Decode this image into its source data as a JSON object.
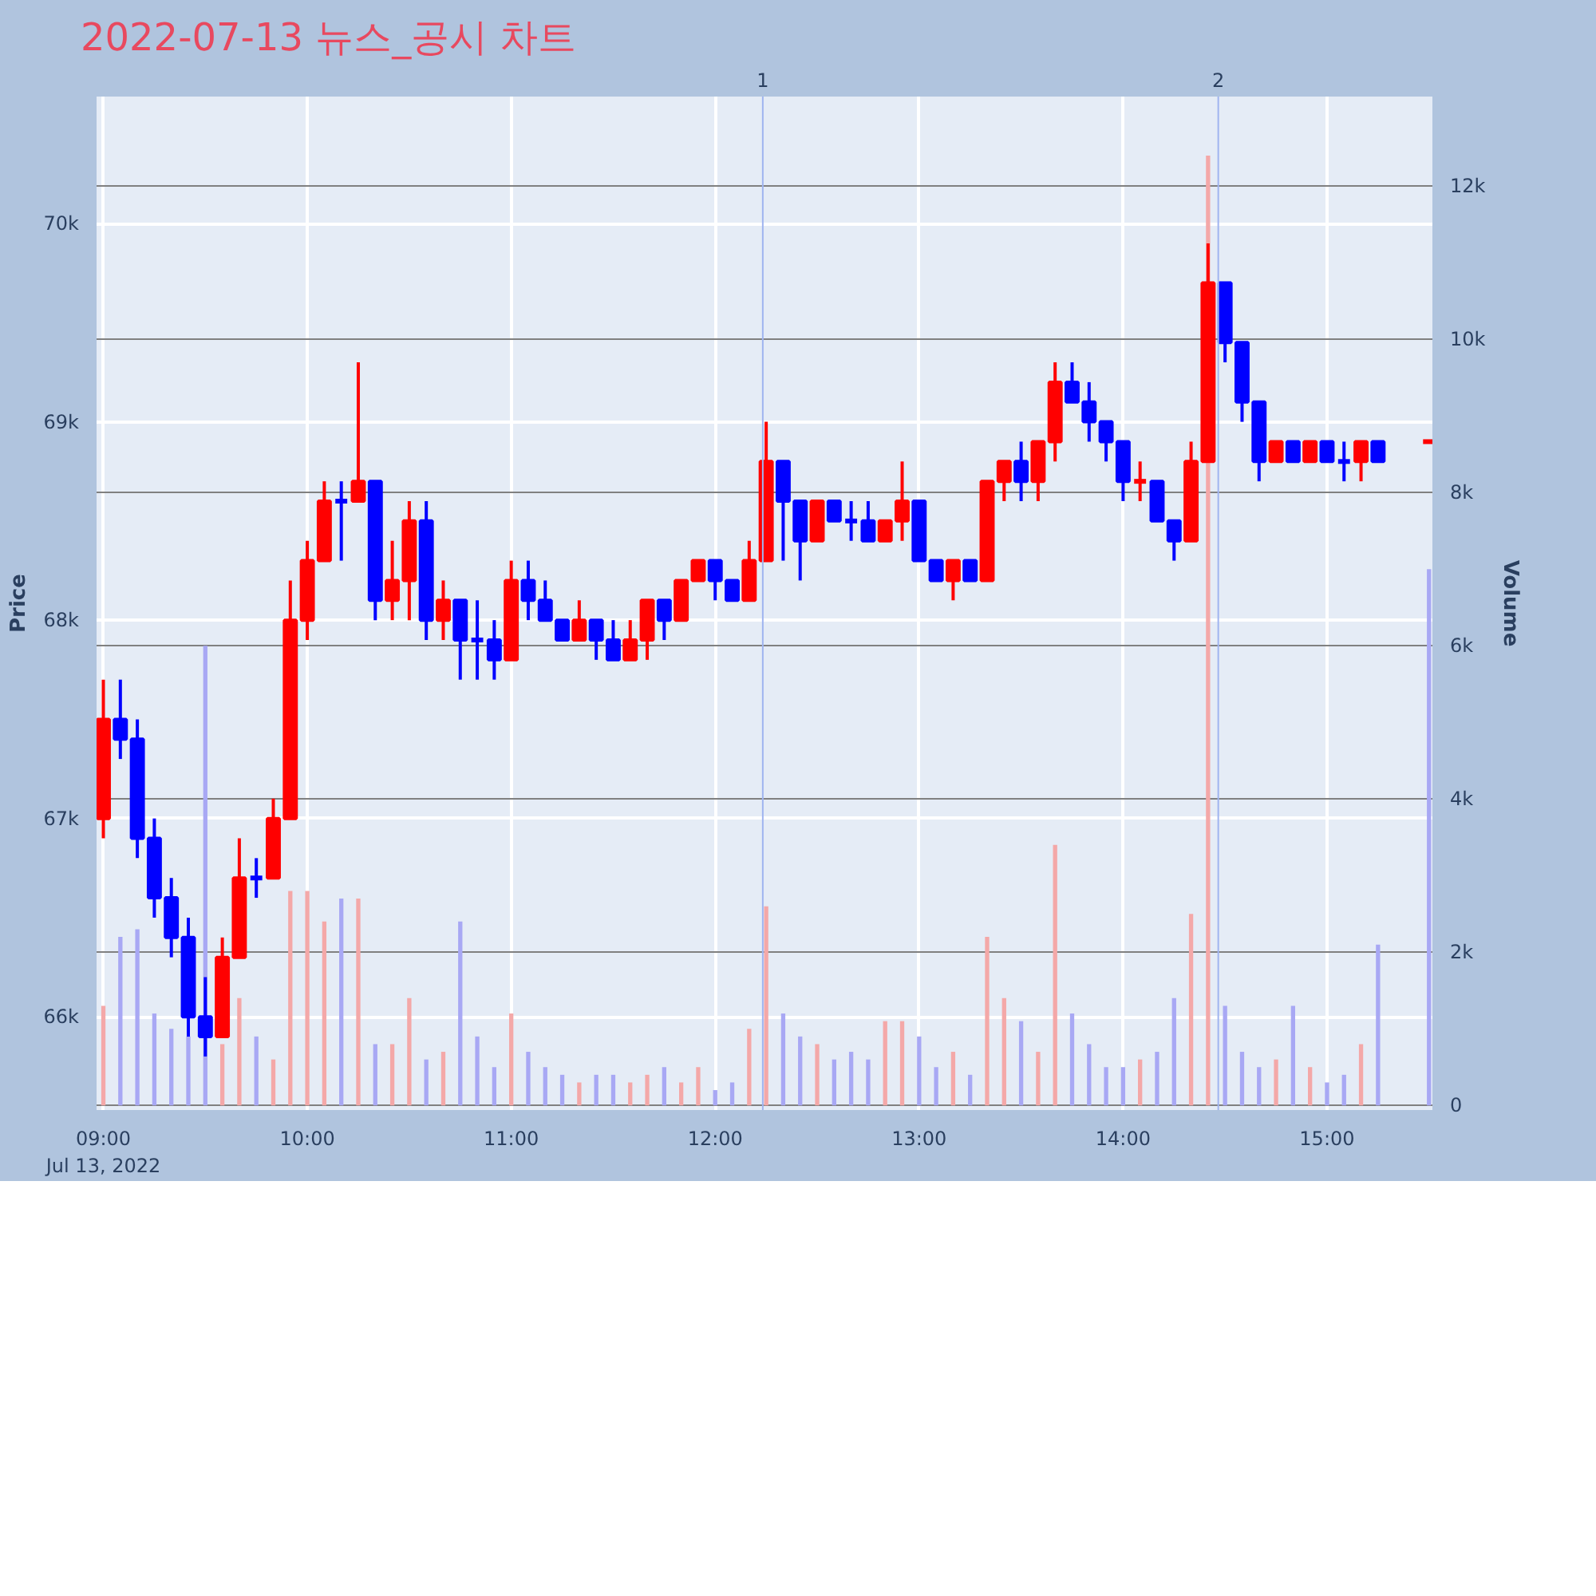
{
  "chart_data": {
    "type": "candlestick",
    "title": "2022-07-13 뉴스_공시 차트",
    "ylabel": "Price",
    "y2label": "Volume",
    "x": [
      "2022-07-13T09:00",
      "2022-07-13T09:05",
      "2022-07-13T09:10",
      "2022-07-13T09:15",
      "2022-07-13T09:20",
      "2022-07-13T09:25",
      "2022-07-13T09:30",
      "2022-07-13T09:35",
      "2022-07-13T09:40",
      "2022-07-13T09:45",
      "2022-07-13T09:50",
      "2022-07-13T09:55",
      "2022-07-13T10:00",
      "2022-07-13T10:05",
      "2022-07-13T10:10",
      "2022-07-13T10:15",
      "2022-07-13T10:20",
      "2022-07-13T10:25",
      "2022-07-13T10:30",
      "2022-07-13T10:35",
      "2022-07-13T10:40",
      "2022-07-13T10:45",
      "2022-07-13T10:50",
      "2022-07-13T10:55",
      "2022-07-13T11:00",
      "2022-07-13T11:05",
      "2022-07-13T11:10",
      "2022-07-13T11:15",
      "2022-07-13T11:20",
      "2022-07-13T11:25",
      "2022-07-13T11:30",
      "2022-07-13T11:35",
      "2022-07-13T11:40",
      "2022-07-13T11:45",
      "2022-07-13T11:50",
      "2022-07-13T11:55",
      "2022-07-13T12:00",
      "2022-07-13T12:05",
      "2022-07-13T12:10",
      "2022-07-13T12:15",
      "2022-07-13T12:20",
      "2022-07-13T12:25",
      "2022-07-13T12:30",
      "2022-07-13T12:35",
      "2022-07-13T12:40",
      "2022-07-13T12:45",
      "2022-07-13T12:50",
      "2022-07-13T12:55",
      "2022-07-13T13:00",
      "2022-07-13T13:05",
      "2022-07-13T13:10",
      "2022-07-13T13:15",
      "2022-07-13T13:20",
      "2022-07-13T13:25",
      "2022-07-13T13:30",
      "2022-07-13T13:35",
      "2022-07-13T13:40",
      "2022-07-13T13:45",
      "2022-07-13T13:50",
      "2022-07-13T13:55",
      "2022-07-13T14:00",
      "2022-07-13T14:05",
      "2022-07-13T14:10",
      "2022-07-13T14:15",
      "2022-07-13T14:20",
      "2022-07-13T14:25",
      "2022-07-13T14:30",
      "2022-07-13T14:35",
      "2022-07-13T14:40",
      "2022-07-13T14:45",
      "2022-07-13T14:50",
      "2022-07-13T14:55",
      "2022-07-13T15:00",
      "2022-07-13T15:05",
      "2022-07-13T15:10",
      "2022-07-13T15:15",
      "2022-07-13T15:30"
    ],
    "series": [
      {
        "ohlc": [
          [
            67000,
            67700,
            66900,
            67500
          ],
          [
            67500,
            67700,
            67300,
            67400
          ],
          [
            67400,
            67500,
            66800,
            66900
          ],
          [
            66900,
            67000,
            66500,
            66600
          ],
          [
            66600,
            66700,
            66300,
            66400
          ],
          [
            66400,
            66500,
            65900,
            66000
          ],
          [
            66000,
            66200,
            65800,
            65900
          ],
          [
            65900,
            66400,
            65900,
            66300
          ],
          [
            66300,
            66900,
            66300,
            66700
          ],
          [
            66700,
            66800,
            66600,
            66700
          ],
          [
            66700,
            67100,
            66700,
            67000
          ],
          [
            67000,
            68200,
            67000,
            68000
          ],
          [
            68000,
            68400,
            67900,
            68300
          ],
          [
            68300,
            68700,
            68300,
            68600
          ],
          [
            68600,
            68700,
            68300,
            68600
          ],
          [
            68600,
            69300,
            68600,
            68700
          ],
          [
            68700,
            68700,
            68000,
            68100
          ],
          [
            68100,
            68400,
            68000,
            68200
          ],
          [
            68200,
            68600,
            68000,
            68500
          ],
          [
            68500,
            68600,
            67900,
            68000
          ],
          [
            68000,
            68200,
            67900,
            68100
          ],
          [
            68100,
            68100,
            67700,
            67900
          ],
          [
            67900,
            68100,
            67700,
            67900
          ],
          [
            67900,
            68000,
            67700,
            67800
          ],
          [
            67800,
            68300,
            67800,
            68200
          ],
          [
            68200,
            68300,
            68000,
            68100
          ],
          [
            68100,
            68200,
            68000,
            68000
          ],
          [
            68000,
            68000,
            67900,
            67900
          ],
          [
            67900,
            68100,
            67900,
            68000
          ],
          [
            68000,
            68000,
            67800,
            67900
          ],
          [
            67900,
            68000,
            67800,
            67800
          ],
          [
            67800,
            68000,
            67800,
            67900
          ],
          [
            67900,
            68100,
            67800,
            68100
          ],
          [
            68100,
            68100,
            67900,
            68000
          ],
          [
            68000,
            68200,
            68000,
            68200
          ],
          [
            68200,
            68300,
            68200,
            68300
          ],
          [
            68300,
            68300,
            68100,
            68200
          ],
          [
            68200,
            68200,
            68100,
            68100
          ],
          [
            68100,
            68400,
            68100,
            68300
          ],
          [
            68300,
            69000,
            68300,
            68800
          ],
          [
            68800,
            68800,
            68300,
            68600
          ],
          [
            68600,
            68600,
            68200,
            68400
          ],
          [
            68400,
            68600,
            68400,
            68600
          ],
          [
            68600,
            68600,
            68500,
            68500
          ],
          [
            68500,
            68600,
            68400,
            68500
          ],
          [
            68500,
            68600,
            68400,
            68400
          ],
          [
            68400,
            68500,
            68400,
            68500
          ],
          [
            68500,
            68800,
            68400,
            68600
          ],
          [
            68600,
            68600,
            68300,
            68300
          ],
          [
            68300,
            68300,
            68200,
            68200
          ],
          [
            68200,
            68300,
            68100,
            68300
          ],
          [
            68300,
            68300,
            68200,
            68200
          ],
          [
            68200,
            68700,
            68200,
            68700
          ],
          [
            68700,
            68800,
            68600,
            68800
          ],
          [
            68800,
            68900,
            68600,
            68700
          ],
          [
            68700,
            68900,
            68600,
            68900
          ],
          [
            68900,
            69300,
            68800,
            69200
          ],
          [
            69200,
            69300,
            69100,
            69100
          ],
          [
            69100,
            69200,
            68900,
            69000
          ],
          [
            69000,
            69000,
            68800,
            68900
          ],
          [
            68900,
            68900,
            68600,
            68700
          ],
          [
            68700,
            68800,
            68600,
            68700
          ],
          [
            68700,
            68700,
            68500,
            68500
          ],
          [
            68500,
            68500,
            68300,
            68400
          ],
          [
            68400,
            68900,
            68400,
            68800
          ],
          [
            68800,
            69900,
            68800,
            69700
          ],
          [
            69700,
            69700,
            69300,
            69400
          ],
          [
            69400,
            69400,
            69000,
            69100
          ],
          [
            69100,
            69100,
            68700,
            68800
          ],
          [
            68800,
            68900,
            68800,
            68900
          ],
          [
            68900,
            68900,
            68800,
            68800
          ],
          [
            68800,
            68900,
            68800,
            68900
          ],
          [
            68900,
            68900,
            68800,
            68800
          ],
          [
            68800,
            68900,
            68700,
            68800
          ],
          [
            68800,
            68900,
            68700,
            68900
          ],
          [
            68900,
            68900,
            68800,
            68800
          ],
          [
            68900,
            68900,
            68900,
            68900
          ]
        ],
        "colors": [
          "#ff0000",
          "#0000ff",
          "#0000ff",
          "#0000ff",
          "#0000ff",
          "#0000ff",
          "#0000ff",
          "#ff0000",
          "#ff0000",
          "#0000ff",
          "#ff0000",
          "#ff0000",
          "#ff0000",
          "#ff0000",
          "#0000ff",
          "#ff0000",
          "#0000ff",
          "#ff0000",
          "#ff0000",
          "#0000ff",
          "#ff0000",
          "#0000ff",
          "#0000ff",
          "#0000ff",
          "#ff0000",
          "#0000ff",
          "#0000ff",
          "#0000ff",
          "#ff0000",
          "#0000ff",
          "#0000ff",
          "#ff0000",
          "#ff0000",
          "#0000ff",
          "#ff0000",
          "#ff0000",
          "#0000ff",
          "#0000ff",
          "#ff0000",
          "#ff0000",
          "#0000ff",
          "#0000ff",
          "#ff0000",
          "#0000ff",
          "#0000ff",
          "#0000ff",
          "#ff0000",
          "#ff0000",
          "#0000ff",
          "#0000ff",
          "#ff0000",
          "#0000ff",
          "#ff0000",
          "#ff0000",
          "#0000ff",
          "#ff0000",
          "#ff0000",
          "#0000ff",
          "#0000ff",
          "#0000ff",
          "#0000ff",
          "#ff0000",
          "#0000ff",
          "#0000ff",
          "#ff0000",
          "#ff0000",
          "#0000ff",
          "#0000ff",
          "#0000ff",
          "#ff0000",
          "#0000ff",
          "#ff0000",
          "#0000ff",
          "#0000ff",
          "#ff0000",
          "#0000ff",
          "#ff0000"
        ]
      },
      {
        "type": "bar",
        "axis": "y2",
        "values": [
          1300,
          2200,
          2300,
          1200,
          1000,
          900,
          6000,
          800,
          1400,
          900,
          600,
          2800,
          2800,
          2400,
          2700,
          2700,
          800,
          800,
          1400,
          600,
          700,
          2400,
          900,
          500,
          1200,
          700,
          500,
          400,
          300,
          400,
          400,
          300,
          400,
          500,
          300,
          500,
          200,
          300,
          1000,
          2600,
          1200,
          900,
          800,
          600,
          700,
          600,
          1100,
          1100,
          900,
          500,
          700,
          400,
          2200,
          1400,
          1100,
          700,
          3400,
          1200,
          800,
          500,
          500,
          600,
          700,
          1400,
          2500,
          12400,
          1300,
          700,
          500,
          600,
          1300,
          500,
          300,
          400,
          800,
          2100,
          7000
        ],
        "colors": [
          "#f4a8a8",
          "#a8a8f4",
          "#a8a8f4",
          "#a8a8f4",
          "#a8a8f4",
          "#a8a8f4",
          "#a8a8f4",
          "#f4a8a8",
          "#f4a8a8",
          "#a8a8f4",
          "#f4a8a8",
          "#f4a8a8",
          "#f4a8a8",
          "#f4a8a8",
          "#a8a8f4",
          "#f4a8a8",
          "#a8a8f4",
          "#f4a8a8",
          "#f4a8a8",
          "#a8a8f4",
          "#f4a8a8",
          "#a8a8f4",
          "#a8a8f4",
          "#a8a8f4",
          "#f4a8a8",
          "#a8a8f4",
          "#a8a8f4",
          "#a8a8f4",
          "#f4a8a8",
          "#a8a8f4",
          "#a8a8f4",
          "#f4a8a8",
          "#f4a8a8",
          "#a8a8f4",
          "#f4a8a8",
          "#f4a8a8",
          "#a8a8f4",
          "#a8a8f4",
          "#f4a8a8",
          "#f4a8a8",
          "#a8a8f4",
          "#a8a8f4",
          "#f4a8a8",
          "#a8a8f4",
          "#a8a8f4",
          "#a8a8f4",
          "#f4a8a8",
          "#f4a8a8",
          "#a8a8f4",
          "#a8a8f4",
          "#f4a8a8",
          "#a8a8f4",
          "#f4a8a8",
          "#f4a8a8",
          "#a8a8f4",
          "#f4a8a8",
          "#f4a8a8",
          "#a8a8f4",
          "#a8a8f4",
          "#a8a8f4",
          "#a8a8f4",
          "#f4a8a8",
          "#a8a8f4",
          "#a8a8f4",
          "#f4a8a8",
          "#f4a8a8",
          "#a8a8f4",
          "#a8a8f4",
          "#a8a8f4",
          "#f4a8a8",
          "#a8a8f4",
          "#f4a8a8",
          "#a8a8f4",
          "#a8a8f4",
          "#f4a8a8",
          "#a8a8f4",
          "#a8a8f4"
        ]
      }
    ],
    "xlim": [
      "2022-07-13T08:58",
      "2022-07-13T15:31"
    ],
    "xticks": [
      {
        "value": "2022-07-13T09:00",
        "label": "09:00\nJul 13, 2022"
      },
      {
        "value": "2022-07-13T10:00",
        "label": "10:00"
      },
      {
        "value": "2022-07-13T11:00",
        "label": "11:00"
      },
      {
        "value": "2022-07-13T12:00",
        "label": "12:00"
      },
      {
        "value": "2022-07-13T13:00",
        "label": "13:00"
      },
      {
        "value": "2022-07-13T14:00",
        "label": "14:00"
      },
      {
        "value": "2022-07-13T15:00",
        "label": "15:00"
      }
    ],
    "ylim": [
      65530,
      70640
    ],
    "yticks": [
      {
        "value": 66000,
        "label": "66k"
      },
      {
        "value": 67000,
        "label": "67k"
      },
      {
        "value": 68000,
        "label": "68k"
      },
      {
        "value": 69000,
        "label": "69k"
      },
      {
        "value": 70000,
        "label": "70k"
      }
    ],
    "y2lim": [
      -60,
      13170
    ],
    "y2ticks": [
      0,
      {
        "value": 2000,
        "label": "2k"
      },
      {
        "value": 4000,
        "label": "4k"
      },
      {
        "value": 6000,
        "label": "6k"
      },
      {
        "value": 8000,
        "label": "8k"
      },
      {
        "value": 10000,
        "label": "10k"
      },
      {
        "value": 12000,
        "label": "12k"
      }
    ],
    "ref_lines": [
      {
        "axis": "x",
        "value": "2022-07-13T12:14",
        "label": "1",
        "color": "#a0b4f0"
      },
      {
        "axis": "x",
        "value": "2022-07-13T14:28",
        "label": "2",
        "color": "#a0b4f0"
      }
    ],
    "grid": true
  }
}
